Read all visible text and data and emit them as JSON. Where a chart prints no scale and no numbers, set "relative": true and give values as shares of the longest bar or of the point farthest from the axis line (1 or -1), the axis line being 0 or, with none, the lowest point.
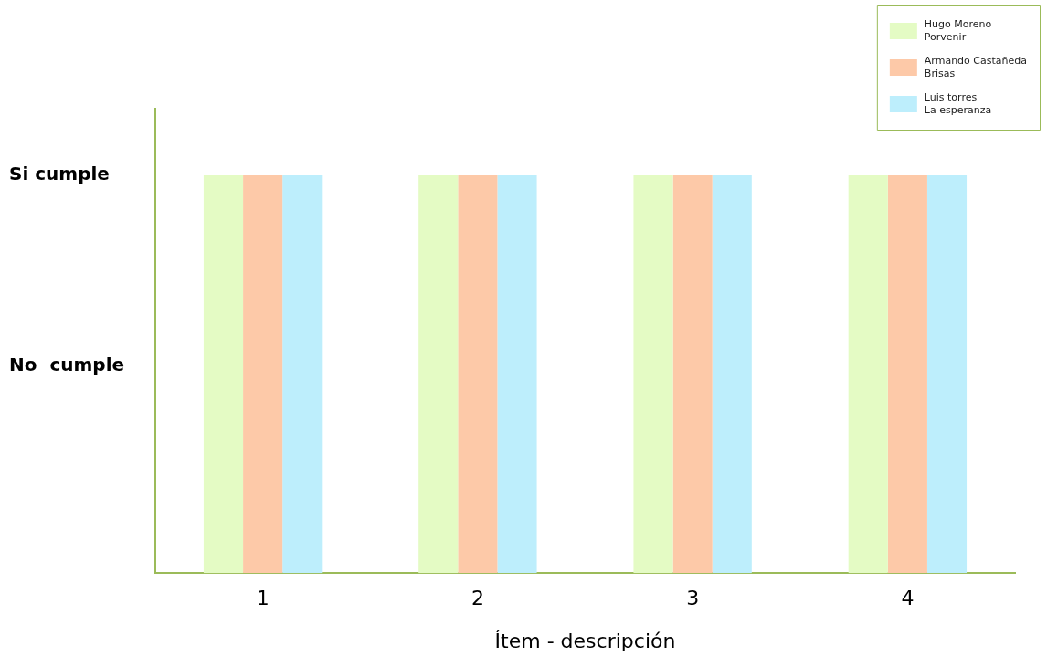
{
  "chart_data": {
    "type": "bar",
    "xlabel": "Ítem - descripción",
    "categories": [
      "1",
      "2",
      "3",
      "4"
    ],
    "series": [
      {
        "name": "Hugo Moreno\nPorvenir",
        "color": "#e4fbc4",
        "values": [
          1,
          1,
          1,
          1
        ]
      },
      {
        "name": "Armando Castañeda\nBrisas",
        "color": "#fdc9a8",
        "values": [
          1,
          1,
          1,
          1
        ]
      },
      {
        "name": "Luis torres\nLa esperanza",
        "color": "#bdeefc",
        "values": [
          1,
          1,
          1,
          1
        ]
      }
    ],
    "relative": true,
    "annotations": [
      "Si cumple",
      "No  cumple"
    ],
    "grid": false,
    "legend": "top right"
  }
}
